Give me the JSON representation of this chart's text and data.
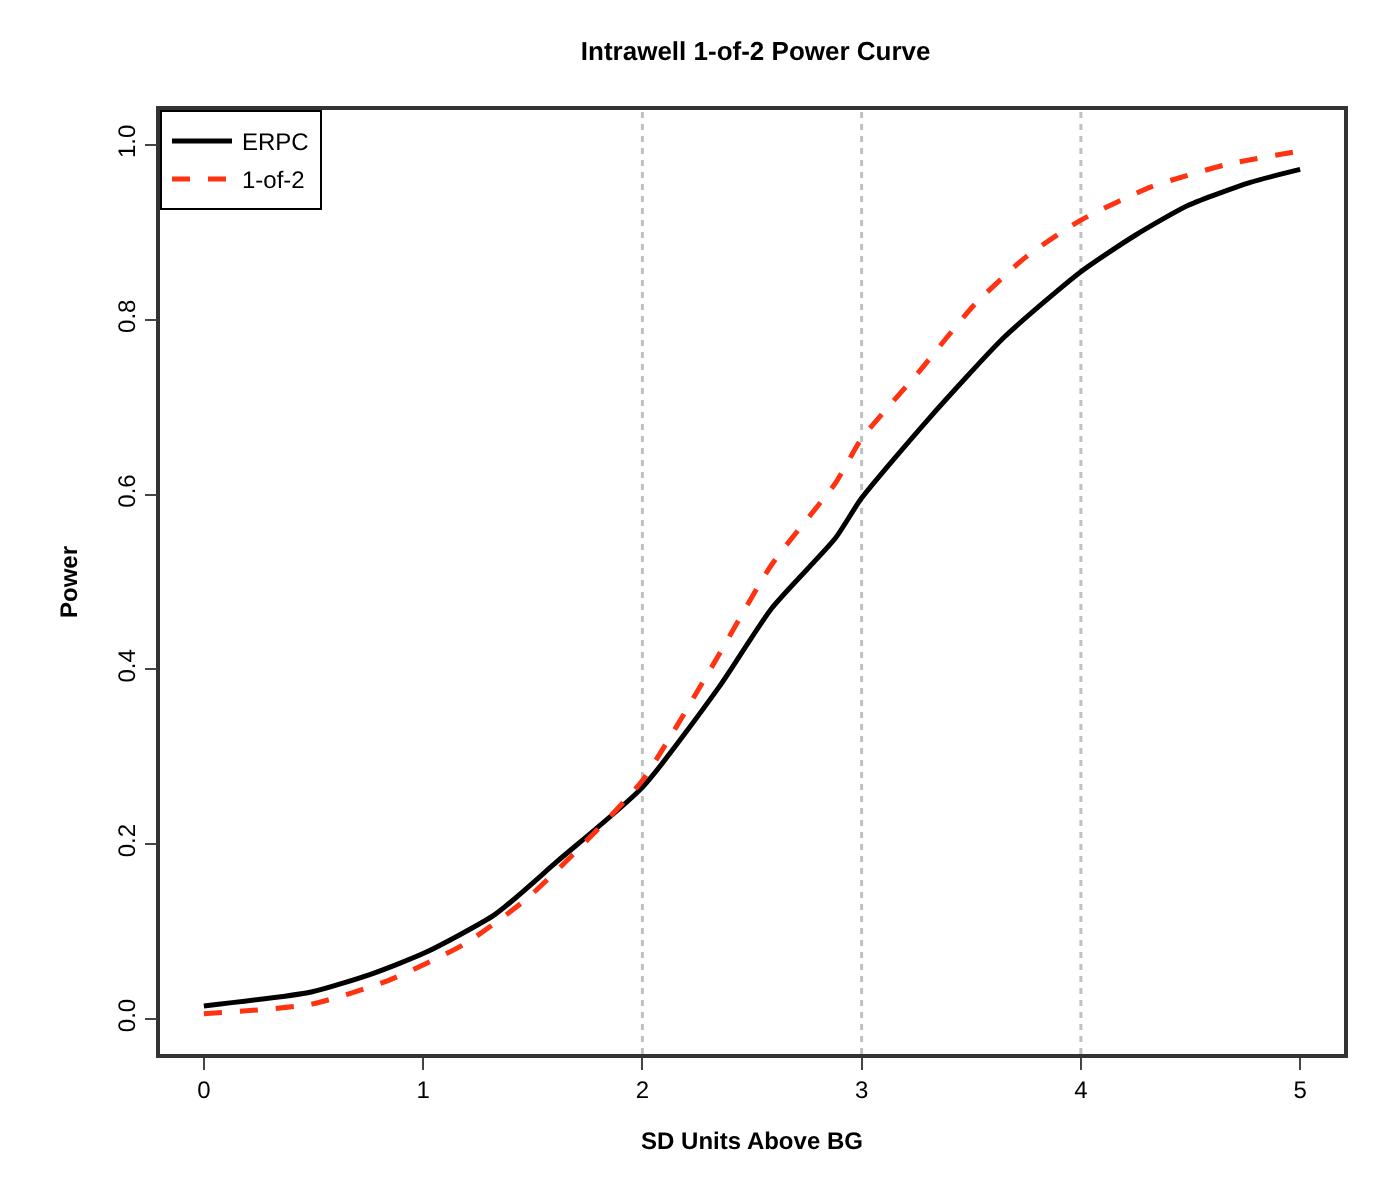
{
  "chart_data": {
    "type": "line",
    "title": "Intrawell 1-of-2 Power Curve",
    "xlabel": "SD Units Above BG",
    "ylabel": "Power",
    "xlim": [
      -0.2,
      5.2
    ],
    "xticks": [
      0,
      1,
      2,
      3,
      4,
      5
    ],
    "ylim": [
      -0.04,
      1.04
    ],
    "yticks": [
      {
        "value": 0,
        "label": "0.0"
      },
      0.2,
      0.4,
      0.6,
      0.8,
      {
        "value": 1,
        "label": "1.0"
      }
    ],
    "grid": false,
    "legend": "top left",
    "marker": "none",
    "ref_lines": [
      {
        "axis": "x",
        "value": 2,
        "color": "#c0c0c0",
        "line_style": "dotted"
      },
      {
        "axis": "x",
        "value": 3,
        "color": "#c0c0c0",
        "line_style": "dotted"
      },
      {
        "axis": "x",
        "value": 4,
        "color": "#c0c0c0",
        "line_style": "dotted"
      }
    ],
    "series": [
      {
        "name": "ERPC",
        "color": "#000000",
        "line_style": "solid",
        "x": [
          0,
          0.49,
          0.77,
          1.01,
          1.33,
          1.61,
          2.0,
          2.35,
          2.59,
          2.88,
          3.0,
          3.3,
          3.65,
          4.0,
          4.25,
          4.49,
          4.77,
          5.0
        ],
        "values": [
          0.015,
          0.031,
          0.052,
          0.076,
          0.12,
          0.18,
          0.265,
          0.38,
          0.47,
          0.55,
          0.596,
          0.685,
          0.78,
          0.855,
          0.897,
          0.931,
          0.957,
          0.972
        ]
      },
      {
        "name": "1-of-2",
        "color": "#ff3311",
        "line_style": "dashed",
        "x": [
          0,
          0.49,
          0.84,
          1.19,
          1.47,
          1.75,
          2.0,
          2.31,
          2.59,
          2.88,
          3.0,
          3.26,
          3.51,
          3.75,
          4.0,
          4.32,
          4.67,
          5.0
        ],
        "values": [
          0.006,
          0.017,
          0.044,
          0.086,
          0.137,
          0.205,
          0.273,
          0.4,
          0.52,
          0.613,
          0.664,
          0.74,
          0.816,
          0.872,
          0.914,
          0.952,
          0.978,
          0.993
        ]
      }
    ]
  }
}
